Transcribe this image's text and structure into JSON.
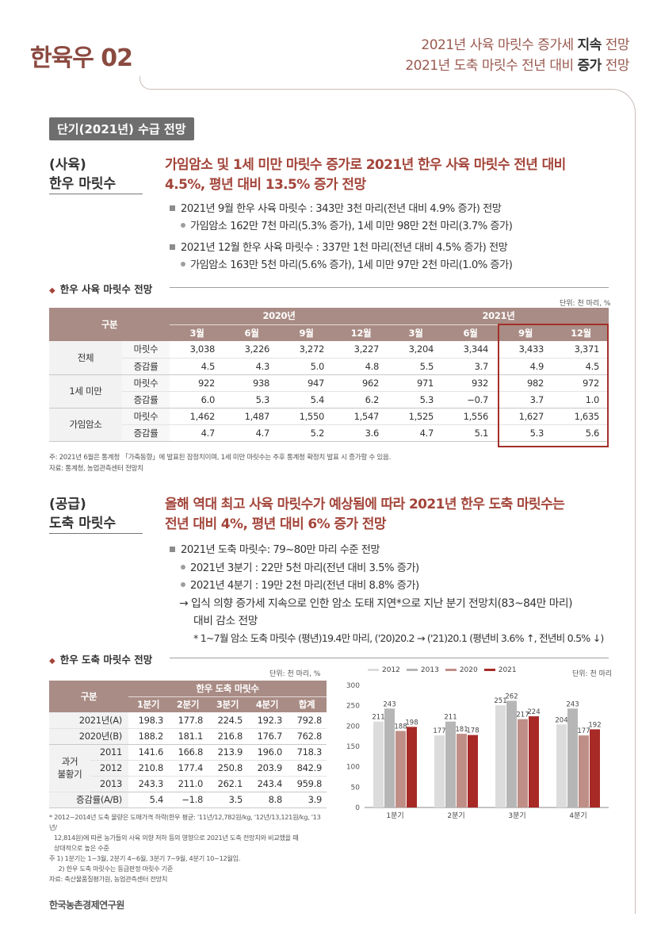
{
  "header": {
    "brand": "한육우 02",
    "line1_prefix": "2021년 사육 마릿수  증가세 ",
    "line1_bold": "지속",
    "line1_suffix": " 전망",
    "line2_prefix": "2021년 도축 마릿수  전년 대비 ",
    "line2_bold": "증가",
    "line2_suffix": " 전망"
  },
  "section_badge": "단기(2021년) 수급 전망",
  "breeding": {
    "topic_line1": "(사육)",
    "topic_line2": "한우 마릿수",
    "headline_line1": "가임암소 및 1세 미만 마릿수 증가로 2021년 한우 사육 마릿수 전년 대비",
    "headline_line2": "4.5%, 평년 대비 13.5% 증가 전망",
    "bullets": [
      "2021년 9월 한우 사육 마릿수 : 343만 3천 마리(전년 대비 4.9% 증가) 전망",
      "가임암소 162만 7천 마리(5.3% 증가), 1세 미만 98만 2천 마리(3.7% 증가)",
      "2021년 12월 한우 사육 마릿수 : 337만 1천 마리(전년 대비 4.5% 증가) 전망",
      "가임암소 163만 5천 마리(5.6% 증가), 1세 미만 97만 2천 마리(1.0% 증가)"
    ],
    "table_title": "한우 사육 마릿수 전망",
    "unit": "단위: 천 마리, %",
    "table": {
      "col_group": "구분",
      "year1": "2020년",
      "year2": "2021년",
      "months": [
        "3월",
        "6월",
        "9월",
        "12월",
        "3월",
        "6월",
        "9월",
        "12월"
      ],
      "groups": [
        {
          "name": "전체",
          "rows": [
            {
              "label": "마릿수",
              "cells": [
                "3,038",
                "3,226",
                "3,272",
                "3,227",
                "3,204",
                "3,344",
                "3,433",
                "3,371"
              ]
            },
            {
              "label": "증감률",
              "cells": [
                "4.5",
                "4.3",
                "5.0",
                "4.8",
                "5.5",
                "3.7",
                "4.9",
                "4.5"
              ]
            }
          ]
        },
        {
          "name": "1세 미만",
          "rows": [
            {
              "label": "마릿수",
              "cells": [
                "922",
                "938",
                "947",
                "962",
                "971",
                "932",
                "982",
                "972"
              ]
            },
            {
              "label": "증감률",
              "cells": [
                "6.0",
                "5.3",
                "5.4",
                "6.2",
                "5.3",
                "−0.7",
                "3.7",
                "1.0"
              ]
            }
          ]
        },
        {
          "name": "가임암소",
          "rows": [
            {
              "label": "마릿수",
              "cells": [
                "1,462",
                "1,487",
                "1,550",
                "1,547",
                "1,525",
                "1,556",
                "1,627",
                "1,635"
              ]
            },
            {
              "label": "증감률",
              "cells": [
                "4.7",
                "4.7",
                "5.2",
                "3.6",
                "4.7",
                "5.1",
                "5.3",
                "5.6"
              ]
            }
          ]
        }
      ]
    },
    "note1": "주: 2021년 6월은 통계청 「가축동향」에 발표된 잠정치이며, 1세 미만 마릿수는 추후 통계청 확정치 발표 시 증가할 수 있음.",
    "note2": "자료: 통계청, 농업관측센터 전망치"
  },
  "slaughter": {
    "topic_line1": "(공급)",
    "topic_line2": "도축 마릿수",
    "headline_line1": "올해 역대 최고 사육 마릿수가 예상됨에 따라 2021년 한우 도축 마릿수는",
    "headline_line2": "전년 대비 4%, 평년 대비 6% 증가 전망",
    "bullets": [
      "2021년 도축 마릿수: 79~80만 마리 수준 전망",
      "2021년 3분기 : 22만 5천 마리(전년 대비 3.5% 증가)",
      "2021년 4분기 : 19만 2천 마리(전년 대비 8.8% 증가)",
      "→ 입식 의향 증가세 지속으로 인한 암소 도태 지연*으로 지난 분기 전망치(83~84만 마리)",
      "대비 감소 전망",
      "* 1~7월 암소 도축 마릿수 (평년)19.4만 마리, ('20)20.2 → ('21)20.1 (평년비 3.6% ↑, 전년비 0.5% ↓)"
    ],
    "table_title": "한우 도축 마릿수 전망",
    "unit": "단위: 천 마리, %",
    "table": {
      "col_group": "구분",
      "span_header": "한우 도축 마릿수",
      "cols": [
        "1분기",
        "2분기",
        "3분기",
        "4분기",
        "합계"
      ],
      "rows": [
        {
          "label": "2021년(A)",
          "cells": [
            "198.3",
            "177.8",
            "224.5",
            "192.3",
            "792.8"
          ]
        },
        {
          "label": "2020년(B)",
          "cells": [
            "188.2",
            "181.1",
            "216.8",
            "176.7",
            "762.8"
          ]
        }
      ],
      "past_group": "과거",
      "past_group2": "불황기",
      "past_rows": [
        {
          "label": "2011",
          "cells": [
            "141.6",
            "166.8",
            "213.9",
            "196.0",
            "718.3"
          ]
        },
        {
          "label": "2012",
          "cells": [
            "210.8",
            "177.4",
            "250.8",
            "203.9",
            "842.9"
          ]
        },
        {
          "label": "2013",
          "cells": [
            "243.3",
            "211.0",
            "262.1",
            "243.4",
            "959.8"
          ]
        }
      ],
      "rate_row": {
        "label": "증감률(A/B)",
        "cells": [
          "5.4",
          "−1.8",
          "3.5",
          "8.8",
          "3.9"
        ]
      }
    },
    "notes": [
      "* 2012~2014년 도축 물량은 도매가격 하락(한우 평균: '11년/12,782원/kg, '12년/13,121원/kg, '13년/",
      "12,814원)에 따른 농가들의 사육 의향 저하 등의 영향으로 2021년 도축 전망치와 비교했을 때",
      "상대적으로 높은 수준",
      "주  1) 1분기는 1~3월, 2분기 4~6월, 3분기 7~9월, 4분기 10~12월임.",
      "     2) 한우 도축 마릿수는 등급판정 마릿수 기준",
      "자료: 축산물품질평가원, 농업관측센터 전망치"
    ],
    "chart_unit": "단위: 천 마리"
  },
  "chart_data": {
    "type": "bar",
    "categories": [
      "1분기",
      "2분기",
      "3분기",
      "4분기"
    ],
    "series": [
      {
        "name": "2012",
        "color": "#dcdcdc",
        "values": [
          211,
          177,
          251,
          204
        ]
      },
      {
        "name": "2013",
        "color": "#b6b6b6",
        "values": [
          243,
          211,
          262,
          243
        ]
      },
      {
        "name": "2020",
        "color": "#bf8f87",
        "values": [
          188,
          181,
          217,
          177
        ]
      },
      {
        "name": "2021",
        "color": "#a82a27",
        "values": [
          198,
          178,
          224,
          192
        ]
      }
    ],
    "ylim": [
      0,
      300
    ],
    "yticks": [
      0,
      50,
      100,
      150,
      200,
      250,
      300
    ]
  },
  "footer": "한국농촌경제연구원"
}
